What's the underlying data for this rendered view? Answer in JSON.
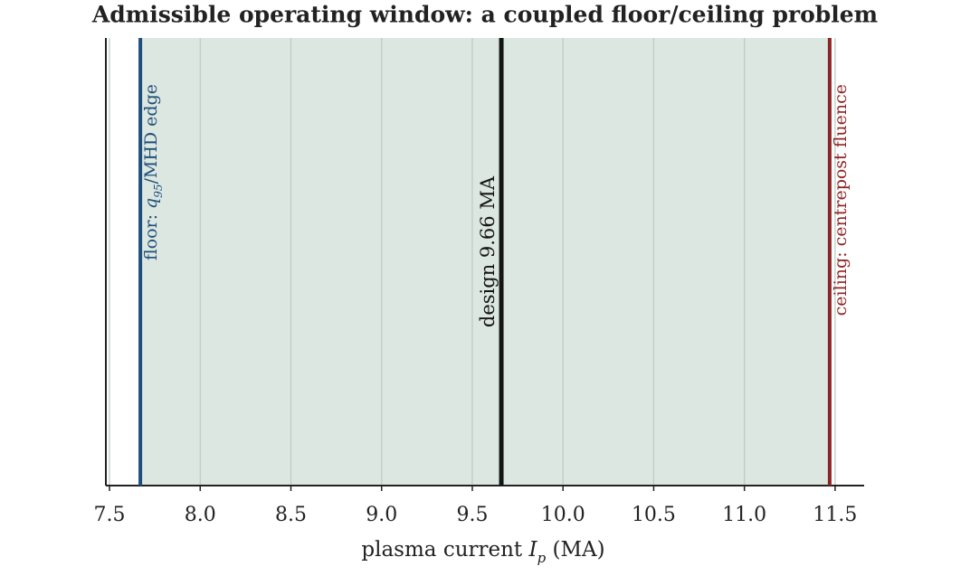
{
  "chart_data": {
    "type": "span",
    "title": "Admissible operating window: a coupled floor/ceiling problem",
    "xlabel": {
      "text": "plasma current ",
      "symbol": "I",
      "subscript": "p",
      "suffix": " (MA)"
    },
    "xlim": [
      7.48,
      11.66
    ],
    "xticks": [
      7.5,
      {
        "value": 8,
        "label": "8.0"
      },
      8.5,
      {
        "value": 9,
        "label": "9.0"
      },
      9.5,
      {
        "value": 10,
        "label": "10.0"
      },
      10.5,
      {
        "value": 11,
        "label": "11.0"
      },
      11.5
    ],
    "grid": true,
    "span": {
      "from": 7.67,
      "to": 11.47,
      "color": "#dce7e1"
    },
    "lines": [
      {
        "value": 7.67,
        "color": "#1f4e7a",
        "label": {
          "text": "floor: ",
          "symbol": "q",
          "subscript": "95",
          "suffix": "/MHD edge"
        }
      },
      {
        "value": 9.66,
        "color": "#151515",
        "label": {
          "text": "design 9.66 MA"
        }
      },
      {
        "value": 11.47,
        "color": "#8e2424",
        "label": {
          "text": "ceiling: centrepost fluence"
        }
      }
    ]
  }
}
